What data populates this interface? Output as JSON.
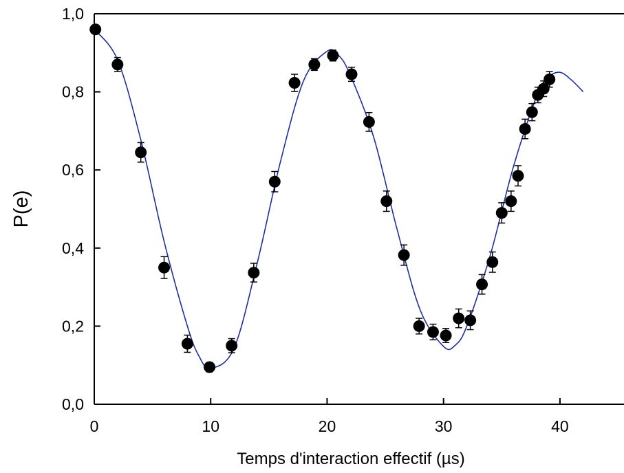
{
  "chart_data": {
    "type": "scatter",
    "xlabel": "Temps d'interaction effectif (µs)",
    "ylabel": "P(e)",
    "xlim": [
      0,
      45.5
    ],
    "ylim": [
      0,
      1.0
    ],
    "x_ticks": [
      0,
      10,
      20,
      30,
      40
    ],
    "x_tick_labels": [
      "0",
      "10",
      "20",
      "30",
      "40"
    ],
    "y_ticks": [
      0,
      0.2,
      0.4,
      0.6,
      0.8,
      1.0
    ],
    "y_tick_labels": [
      "0,0",
      "0,2",
      "0,4",
      "0,6",
      "0,8",
      "1,0"
    ],
    "grid": false,
    "colors": {
      "points": "#000000",
      "fit": "#1f2f9a",
      "axes": "#000000"
    },
    "series": [
      {
        "kind": "scatter",
        "x": [
          0.1,
          2.0,
          4.0,
          6.0,
          8.0,
          9.9,
          11.8,
          13.7,
          15.5,
          17.2,
          18.9,
          20.5,
          22.1,
          23.6,
          25.1,
          26.6,
          27.9,
          29.1,
          30.2,
          31.3,
          32.3,
          33.3,
          34.2,
          35.0,
          35.8,
          36.4,
          37.0,
          37.6,
          38.1,
          38.6,
          39.1
        ],
        "y": [
          0.96,
          0.87,
          0.645,
          0.35,
          0.155,
          0.095,
          0.15,
          0.337,
          0.57,
          0.823,
          0.87,
          0.893,
          0.845,
          0.723,
          0.52,
          0.382,
          0.2,
          0.185,
          0.176,
          0.22,
          0.215,
          0.307,
          0.364,
          0.49,
          0.52,
          0.585,
          0.705,
          0.748,
          0.792,
          0.808,
          0.832
        ],
        "yerr": [
          0.01,
          0.018,
          0.025,
          0.028,
          0.022,
          0.012,
          0.018,
          0.024,
          0.026,
          0.022,
          0.015,
          0.014,
          0.018,
          0.024,
          0.026,
          0.026,
          0.02,
          0.02,
          0.018,
          0.024,
          0.024,
          0.025,
          0.026,
          0.026,
          0.026,
          0.026,
          0.025,
          0.022,
          0.02,
          0.02,
          0.02
        ]
      },
      {
        "kind": "line",
        "x": [
          0,
          2,
          4,
          6,
          8,
          9,
          10,
          12,
          14,
          16,
          18,
          20,
          21,
          22,
          24,
          26,
          28,
          30,
          31,
          32,
          34,
          36,
          38,
          39,
          40,
          41,
          42
        ],
        "y": [
          0.96,
          0.882,
          0.677,
          0.417,
          0.2,
          0.123,
          0.092,
          0.143,
          0.362,
          0.622,
          0.83,
          0.904,
          0.893,
          0.842,
          0.684,
          0.449,
          0.241,
          0.148,
          0.151,
          0.2,
          0.38,
          0.608,
          0.789,
          0.837,
          0.85,
          0.83,
          0.8
        ]
      }
    ]
  }
}
